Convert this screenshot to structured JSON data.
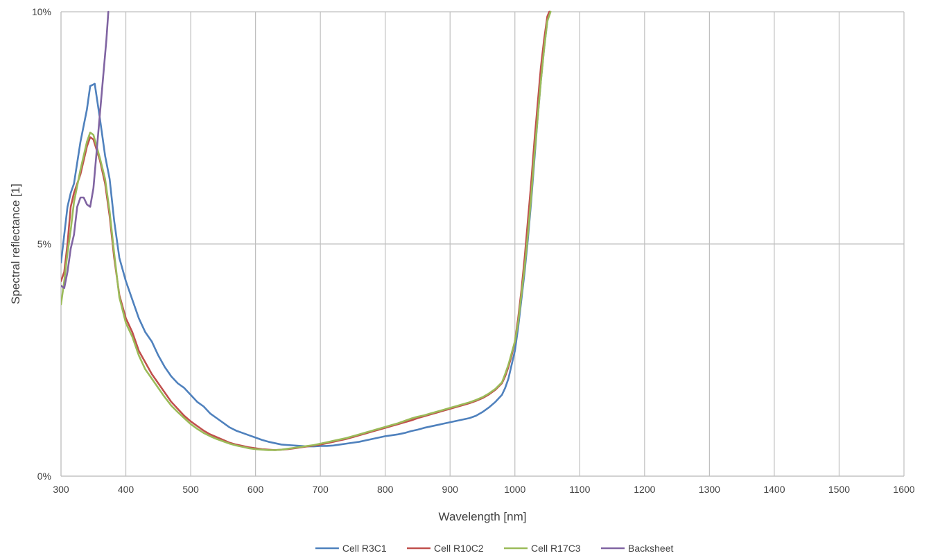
{
  "chart_data": {
    "type": "line",
    "xlabel": "Wavelength [nm]",
    "ylabel": "Spectral reflectance [1]",
    "xlim": [
      300,
      1600
    ],
    "ylim": [
      0,
      10
    ],
    "x_ticks": [
      300,
      400,
      500,
      600,
      700,
      800,
      900,
      1000,
      1100,
      1200,
      1300,
      1400,
      1500,
      1600
    ],
    "y_ticks": [
      {
        "value": 0,
        "label": "0%"
      },
      {
        "value": 5,
        "label": "5%"
      },
      {
        "value": 10,
        "label": "10%"
      }
    ],
    "grid": true,
    "legend_position": "bottom-center",
    "series": [
      {
        "name": "Cell R3C1",
        "color": "#4f81bd",
        "points": [
          [
            300,
            4.6
          ],
          [
            305,
            5.2
          ],
          [
            310,
            5.8
          ],
          [
            315,
            6.1
          ],
          [
            320,
            6.3
          ],
          [
            330,
            7.2
          ],
          [
            340,
            7.9
          ],
          [
            345,
            8.4
          ],
          [
            352,
            8.45
          ],
          [
            360,
            7.7
          ],
          [
            368,
            6.9
          ],
          [
            375,
            6.4
          ],
          [
            382,
            5.5
          ],
          [
            390,
            4.7
          ],
          [
            400,
            4.2
          ],
          [
            410,
            3.8
          ],
          [
            420,
            3.4
          ],
          [
            430,
            3.1
          ],
          [
            440,
            2.9
          ],
          [
            450,
            2.6
          ],
          [
            460,
            2.35
          ],
          [
            470,
            2.15
          ],
          [
            480,
            2.0
          ],
          [
            490,
            1.9
          ],
          [
            500,
            1.75
          ],
          [
            510,
            1.6
          ],
          [
            520,
            1.5
          ],
          [
            530,
            1.35
          ],
          [
            540,
            1.25
          ],
          [
            550,
            1.15
          ],
          [
            560,
            1.05
          ],
          [
            570,
            0.98
          ],
          [
            580,
            0.93
          ],
          [
            590,
            0.88
          ],
          [
            600,
            0.83
          ],
          [
            610,
            0.78
          ],
          [
            620,
            0.74
          ],
          [
            630,
            0.71
          ],
          [
            640,
            0.68
          ],
          [
            650,
            0.67
          ],
          [
            660,
            0.66
          ],
          [
            670,
            0.65
          ],
          [
            680,
            0.64
          ],
          [
            690,
            0.64
          ],
          [
            700,
            0.65
          ],
          [
            710,
            0.65
          ],
          [
            720,
            0.66
          ],
          [
            730,
            0.68
          ],
          [
            740,
            0.7
          ],
          [
            750,
            0.72
          ],
          [
            760,
            0.74
          ],
          [
            770,
            0.77
          ],
          [
            780,
            0.8
          ],
          [
            790,
            0.83
          ],
          [
            800,
            0.86
          ],
          [
            810,
            0.88
          ],
          [
            820,
            0.9
          ],
          [
            830,
            0.93
          ],
          [
            840,
            0.97
          ],
          [
            850,
            1.0
          ],
          [
            860,
            1.04
          ],
          [
            870,
            1.07
          ],
          [
            880,
            1.1
          ],
          [
            890,
            1.13
          ],
          [
            900,
            1.16
          ],
          [
            910,
            1.19
          ],
          [
            920,
            1.22
          ],
          [
            930,
            1.25
          ],
          [
            940,
            1.3
          ],
          [
            950,
            1.38
          ],
          [
            960,
            1.48
          ],
          [
            970,
            1.6
          ],
          [
            980,
            1.75
          ],
          [
            985,
            1.9
          ],
          [
            990,
            2.1
          ],
          [
            995,
            2.4
          ],
          [
            1000,
            2.7
          ],
          [
            1005,
            3.2
          ],
          [
            1010,
            3.8
          ],
          [
            1015,
            4.4
          ],
          [
            1020,
            5.1
          ],
          [
            1025,
            5.9
          ],
          [
            1030,
            6.8
          ],
          [
            1035,
            7.7
          ],
          [
            1040,
            8.5
          ],
          [
            1045,
            9.2
          ],
          [
            1050,
            9.8
          ],
          [
            1054,
            10.0
          ]
        ]
      },
      {
        "name": "Cell R10C2",
        "color": "#c0504d",
        "points": [
          [
            300,
            4.2
          ],
          [
            305,
            4.4
          ],
          [
            310,
            5.0
          ],
          [
            315,
            5.8
          ],
          [
            320,
            6.1
          ],
          [
            330,
            6.5
          ],
          [
            340,
            7.1
          ],
          [
            345,
            7.3
          ],
          [
            350,
            7.25
          ],
          [
            360,
            6.8
          ],
          [
            368,
            6.3
          ],
          [
            375,
            5.6
          ],
          [
            382,
            4.7
          ],
          [
            390,
            3.9
          ],
          [
            400,
            3.4
          ],
          [
            410,
            3.1
          ],
          [
            420,
            2.7
          ],
          [
            430,
            2.45
          ],
          [
            440,
            2.2
          ],
          [
            450,
            2.0
          ],
          [
            460,
            1.8
          ],
          [
            470,
            1.6
          ],
          [
            480,
            1.45
          ],
          [
            490,
            1.3
          ],
          [
            500,
            1.18
          ],
          [
            510,
            1.08
          ],
          [
            520,
            0.98
          ],
          [
            530,
            0.9
          ],
          [
            540,
            0.84
          ],
          [
            550,
            0.78
          ],
          [
            560,
            0.72
          ],
          [
            570,
            0.68
          ],
          [
            580,
            0.65
          ],
          [
            590,
            0.62
          ],
          [
            600,
            0.6
          ],
          [
            610,
            0.58
          ],
          [
            620,
            0.57
          ],
          [
            630,
            0.56
          ],
          [
            640,
            0.57
          ],
          [
            650,
            0.58
          ],
          [
            660,
            0.6
          ],
          [
            670,
            0.62
          ],
          [
            680,
            0.64
          ],
          [
            690,
            0.66
          ],
          [
            700,
            0.68
          ],
          [
            710,
            0.71
          ],
          [
            720,
            0.74
          ],
          [
            730,
            0.77
          ],
          [
            740,
            0.8
          ],
          [
            750,
            0.84
          ],
          [
            760,
            0.88
          ],
          [
            770,
            0.92
          ],
          [
            780,
            0.96
          ],
          [
            790,
            1.0
          ],
          [
            800,
            1.04
          ],
          [
            810,
            1.08
          ],
          [
            820,
            1.12
          ],
          [
            830,
            1.16
          ],
          [
            840,
            1.2
          ],
          [
            850,
            1.25
          ],
          [
            860,
            1.29
          ],
          [
            870,
            1.33
          ],
          [
            880,
            1.37
          ],
          [
            890,
            1.41
          ],
          [
            900,
            1.45
          ],
          [
            910,
            1.49
          ],
          [
            920,
            1.53
          ],
          [
            930,
            1.57
          ],
          [
            940,
            1.62
          ],
          [
            950,
            1.68
          ],
          [
            960,
            1.76
          ],
          [
            970,
            1.86
          ],
          [
            980,
            2.0
          ],
          [
            985,
            2.15
          ],
          [
            990,
            2.35
          ],
          [
            995,
            2.6
          ],
          [
            1000,
            2.9
          ],
          [
            1005,
            3.4
          ],
          [
            1010,
            4.0
          ],
          [
            1015,
            4.7
          ],
          [
            1020,
            5.5
          ],
          [
            1025,
            6.3
          ],
          [
            1030,
            7.2
          ],
          [
            1035,
            8.0
          ],
          [
            1040,
            8.8
          ],
          [
            1045,
            9.4
          ],
          [
            1050,
            9.9
          ],
          [
            1053,
            10.0
          ]
        ]
      },
      {
        "name": "Cell R17C3",
        "color": "#9bbb59",
        "points": [
          [
            300,
            3.7
          ],
          [
            305,
            4.2
          ],
          [
            310,
            4.8
          ],
          [
            315,
            5.3
          ],
          [
            320,
            5.9
          ],
          [
            330,
            6.6
          ],
          [
            340,
            7.2
          ],
          [
            345,
            7.4
          ],
          [
            350,
            7.35
          ],
          [
            360,
            6.85
          ],
          [
            368,
            6.4
          ],
          [
            375,
            5.7
          ],
          [
            382,
            4.8
          ],
          [
            390,
            3.85
          ],
          [
            400,
            3.3
          ],
          [
            410,
            3.0
          ],
          [
            420,
            2.6
          ],
          [
            430,
            2.3
          ],
          [
            440,
            2.1
          ],
          [
            450,
            1.9
          ],
          [
            460,
            1.7
          ],
          [
            470,
            1.52
          ],
          [
            480,
            1.38
          ],
          [
            490,
            1.25
          ],
          [
            500,
            1.12
          ],
          [
            510,
            1.02
          ],
          [
            520,
            0.93
          ],
          [
            530,
            0.86
          ],
          [
            540,
            0.8
          ],
          [
            550,
            0.75
          ],
          [
            560,
            0.7
          ],
          [
            570,
            0.66
          ],
          [
            580,
            0.63
          ],
          [
            590,
            0.6
          ],
          [
            600,
            0.58
          ],
          [
            610,
            0.57
          ],
          [
            620,
            0.56
          ],
          [
            630,
            0.56
          ],
          [
            640,
            0.57
          ],
          [
            650,
            0.59
          ],
          [
            660,
            0.61
          ],
          [
            670,
            0.63
          ],
          [
            680,
            0.65
          ],
          [
            690,
            0.67
          ],
          [
            700,
            0.7
          ],
          [
            710,
            0.73
          ],
          [
            720,
            0.76
          ],
          [
            730,
            0.79
          ],
          [
            740,
            0.82
          ],
          [
            750,
            0.86
          ],
          [
            760,
            0.9
          ],
          [
            770,
            0.94
          ],
          [
            780,
            0.98
          ],
          [
            790,
            1.02
          ],
          [
            800,
            1.06
          ],
          [
            810,
            1.1
          ],
          [
            820,
            1.14
          ],
          [
            830,
            1.19
          ],
          [
            840,
            1.24
          ],
          [
            850,
            1.28
          ],
          [
            860,
            1.31
          ],
          [
            870,
            1.35
          ],
          [
            880,
            1.39
          ],
          [
            890,
            1.43
          ],
          [
            900,
            1.47
          ],
          [
            910,
            1.51
          ],
          [
            920,
            1.55
          ],
          [
            930,
            1.59
          ],
          [
            940,
            1.64
          ],
          [
            950,
            1.7
          ],
          [
            960,
            1.78
          ],
          [
            970,
            1.88
          ],
          [
            980,
            2.02
          ],
          [
            985,
            2.2
          ],
          [
            990,
            2.4
          ],
          [
            995,
            2.65
          ],
          [
            1000,
            2.9
          ],
          [
            1005,
            3.3
          ],
          [
            1010,
            3.9
          ],
          [
            1015,
            4.5
          ],
          [
            1020,
            5.2
          ],
          [
            1025,
            6.0
          ],
          [
            1030,
            6.9
          ],
          [
            1035,
            7.7
          ],
          [
            1040,
            8.5
          ],
          [
            1045,
            9.2
          ],
          [
            1050,
            9.8
          ],
          [
            1055,
            10.0
          ]
        ]
      },
      {
        "name": "Backsheet",
        "color": "#8064a2",
        "points": [
          [
            300,
            4.1
          ],
          [
            305,
            4.05
          ],
          [
            310,
            4.4
          ],
          [
            315,
            4.9
          ],
          [
            320,
            5.2
          ],
          [
            325,
            5.8
          ],
          [
            330,
            6.0
          ],
          [
            335,
            6.0
          ],
          [
            340,
            5.85
          ],
          [
            345,
            5.8
          ],
          [
            350,
            6.2
          ],
          [
            355,
            7.0
          ],
          [
            360,
            7.8
          ],
          [
            365,
            8.6
          ],
          [
            370,
            9.4
          ],
          [
            373,
            10.0
          ]
        ]
      }
    ]
  }
}
